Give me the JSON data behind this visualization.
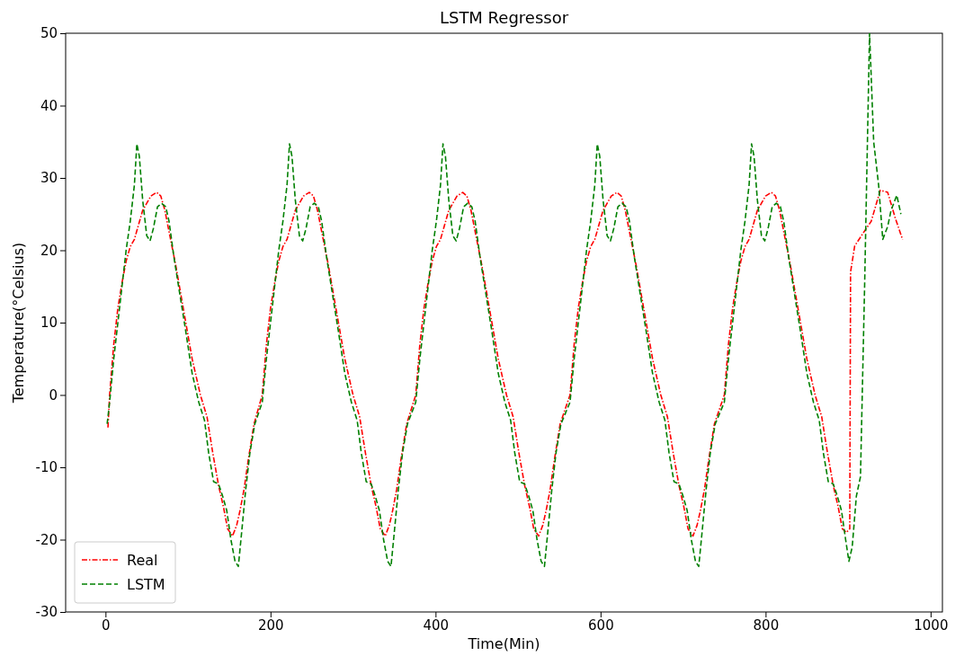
{
  "chart_data": {
    "type": "line",
    "title": "LSTM Regressor",
    "xlabel": "Time(Min)",
    "ylabel": "Temperature(°Celsius)",
    "xlim": [
      -48.3,
      1014.3
    ],
    "xticks": [
      0,
      200,
      400,
      600,
      800,
      1000
    ],
    "ylim": [
      -30,
      50
    ],
    "yticks": [
      -30,
      -20,
      -10,
      0,
      10,
      20,
      30,
      40,
      50
    ],
    "grid": false,
    "legend": "bottom left",
    "marker": "none",
    "series": [
      {
        "name": "Real",
        "color": "#ff0000",
        "line_style": "dashdot",
        "x": [
          3,
          5,
          10,
          15,
          20,
          25,
          30,
          35,
          40,
          45,
          50,
          55,
          62,
          67,
          72,
          78,
          85,
          95,
          105,
          115,
          123,
          130,
          137,
          143,
          148,
          154,
          159,
          163,
          168,
          173,
          180,
          190,
          195,
          200,
          205,
          210,
          215,
          220,
          225,
          230,
          235,
          240,
          247,
          252,
          257,
          263,
          270,
          280,
          290,
          300,
          308,
          315,
          322,
          328,
          333,
          339,
          344,
          348,
          353,
          358,
          365,
          376,
          381,
          386,
          391,
          396,
          401,
          406,
          411,
          416,
          421,
          426,
          433,
          438,
          443,
          449,
          456,
          466,
          476,
          486,
          494,
          501,
          508,
          514,
          519,
          525,
          530,
          534,
          539,
          544,
          551,
          563,
          568,
          573,
          578,
          583,
          588,
          593,
          598,
          603,
          608,
          613,
          620,
          625,
          630,
          636,
          643,
          653,
          663,
          673,
          681,
          688,
          695,
          701,
          706,
          712,
          717,
          721,
          726,
          731,
          738,
          750,
          755,
          760,
          765,
          770,
          775,
          780,
          785,
          790,
          795,
          800,
          807,
          812,
          817,
          823,
          830,
          840,
          850,
          860,
          868,
          875,
          882,
          888,
          893,
          898,
          902,
          903,
          908,
          919,
          928,
          939,
          948,
          957,
          966
        ],
        "values": [
          -4.5,
          0,
          7,
          12,
          15.5,
          18.5,
          20.5,
          21.5,
          23.5,
          25.5,
          26.5,
          27.5,
          28,
          27.5,
          25.5,
          22,
          18,
          11.5,
          5,
          0,
          -3,
          -8,
          -12.5,
          -15.5,
          -18.5,
          -19.5,
          -18,
          -16,
          -13,
          -9,
          -4,
          0,
          7,
          12,
          15.5,
          18.5,
          20.5,
          21.5,
          23.5,
          25.5,
          26.5,
          27.5,
          28,
          27.5,
          25.5,
          22,
          18,
          11.5,
          5,
          0,
          -3,
          -8,
          -12.5,
          -15.5,
          -18.5,
          -19.5,
          -18,
          -16,
          -13,
          -9,
          -4,
          0,
          7,
          12,
          15.5,
          18.5,
          20.5,
          21.5,
          23.5,
          25.5,
          26.5,
          27.5,
          28,
          27.5,
          25.5,
          22,
          18,
          11.5,
          5,
          0,
          -3,
          -8,
          -12.5,
          -15.5,
          -18.5,
          -19.5,
          -18,
          -16,
          -13,
          -9,
          -4,
          0,
          7,
          12,
          15.5,
          18.5,
          20.5,
          21.5,
          23.5,
          25.5,
          26.5,
          27.5,
          28,
          27.5,
          25.5,
          22,
          18,
          11.5,
          5,
          0,
          -3,
          -8,
          -12.5,
          -15.5,
          -18.5,
          -19.5,
          -18,
          -16,
          -13,
          -9,
          -4,
          0,
          7,
          12,
          15.5,
          18.5,
          20.5,
          21.5,
          23.5,
          25.5,
          26.5,
          27.5,
          28,
          27.5,
          25.5,
          22,
          18,
          11.5,
          5,
          0,
          -3,
          -8,
          -12.5,
          -15.5,
          -18.5,
          -19,
          -18.5,
          17,
          20.6,
          22.5,
          24,
          28.3,
          28,
          24.5,
          21.5
        ]
      },
      {
        "name": "LSTM",
        "color": "#008000",
        "line_style": "dashed",
        "x": [
          2,
          5,
          10,
          15,
          20,
          25,
          30,
          35,
          38,
          41,
          45,
          50,
          54,
          58,
          63,
          68,
          73,
          77,
          83,
          90,
          97,
          105,
          113,
          120,
          125,
          131,
          137,
          142,
          147,
          152,
          157,
          161,
          165,
          170,
          175,
          181,
          190,
          195,
          200,
          205,
          210,
          215,
          220,
          223,
          226,
          230,
          235,
          239,
          243,
          248,
          253,
          258,
          262,
          268,
          275,
          282,
          290,
          298,
          305,
          310,
          316,
          322,
          327,
          332,
          337,
          342,
          346,
          350,
          355,
          360,
          366,
          376,
          381,
          386,
          391,
          396,
          401,
          406,
          409,
          412,
          416,
          421,
          425,
          429,
          434,
          439,
          444,
          448,
          454,
          461,
          468,
          476,
          484,
          491,
          496,
          502,
          508,
          513,
          518,
          523,
          528,
          532,
          536,
          541,
          546,
          552,
          563,
          568,
          573,
          578,
          583,
          588,
          593,
          596,
          599,
          603,
          608,
          612,
          616,
          621,
          626,
          631,
          635,
          641,
          648,
          655,
          663,
          671,
          678,
          683,
          689,
          695,
          700,
          705,
          710,
          715,
          719,
          723,
          728,
          733,
          739,
          750,
          755,
          760,
          765,
          770,
          775,
          780,
          783,
          786,
          790,
          795,
          799,
          803,
          808,
          813,
          818,
          822,
          828,
          835,
          842,
          850,
          858,
          865,
          870,
          876,
          882,
          887,
          892,
          897,
          901,
          905,
          910,
          915,
          920,
          926,
          931,
          937,
          942,
          948,
          952,
          959,
          964
        ],
        "values": [
          -4,
          -1,
          5,
          10,
          15,
          20,
          24,
          29,
          34.7,
          33,
          27,
          22,
          21.3,
          23,
          26,
          26.5,
          26,
          24,
          19,
          14,
          9,
          3,
          -1,
          -3.5,
          -8,
          -12,
          -12.3,
          -14,
          -16,
          -20,
          -23,
          -23.7,
          -19,
          -13,
          -8,
          -4,
          -1,
          5,
          10,
          15,
          20,
          24,
          29,
          34.7,
          33,
          27,
          22,
          21.3,
          23,
          26,
          26.5,
          26,
          24,
          19,
          14,
          9,
          3,
          -1,
          -3.5,
          -8,
          -12,
          -12.3,
          -14,
          -16,
          -20,
          -23,
          -23.7,
          -19,
          -13,
          -8,
          -4,
          -1,
          5,
          10,
          15,
          20,
          24,
          29,
          34.7,
          33,
          27,
          22,
          21.3,
          23,
          26,
          26.5,
          26,
          24,
          19,
          14,
          9,
          3,
          -1,
          -3.5,
          -8,
          -12,
          -12.3,
          -14,
          -16,
          -20,
          -23,
          -23.7,
          -19,
          -13,
          -8,
          -4,
          -1,
          5,
          10,
          15,
          20,
          24,
          29,
          34.7,
          33,
          27,
          22,
          21.3,
          23,
          26,
          26.5,
          26,
          24,
          19,
          14,
          9,
          3,
          -1,
          -3.5,
          -8,
          -12,
          -12.3,
          -14,
          -16,
          -20,
          -23,
          -23.7,
          -19,
          -13,
          -8,
          -4,
          -1,
          5,
          10,
          15,
          20,
          24,
          29,
          34.7,
          33,
          27,
          22,
          21.3,
          23,
          26,
          26.5,
          26,
          24,
          19,
          14,
          9,
          3,
          -1,
          -3.5,
          -8,
          -12,
          -12.3,
          -14,
          -16,
          -20,
          -23,
          -21,
          -14,
          -11.3,
          15,
          50,
          35,
          29,
          21.5,
          23.3,
          25.5,
          27.6,
          25
        ]
      }
    ]
  }
}
